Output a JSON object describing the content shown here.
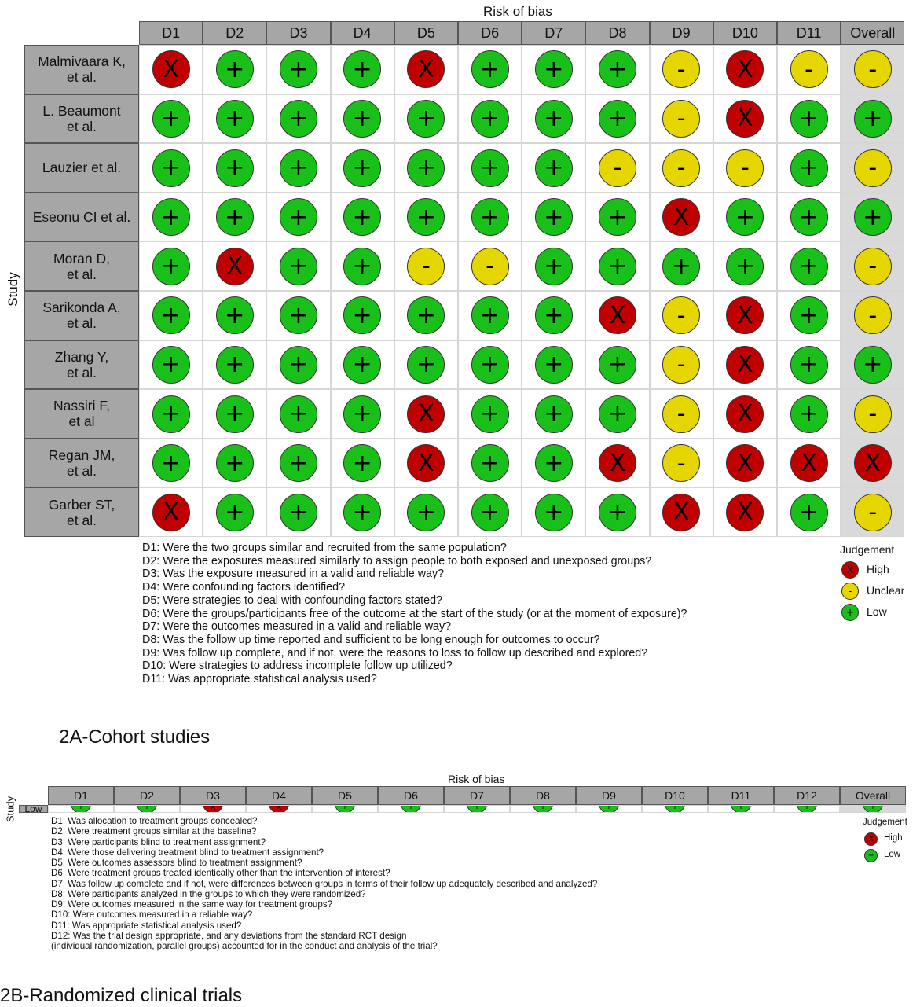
{
  "chart_data": [
    {
      "type": "table",
      "title": "Risk of bias",
      "ylabel": "Study",
      "columns": [
        "D1",
        "D2",
        "D3",
        "D4",
        "D5",
        "D6",
        "D7",
        "D8",
        "D9",
        "D10",
        "D11",
        "Overall"
      ],
      "rows": [
        {
          "study": "Malmivaara K,\net al.",
          "values": [
            "high",
            "low",
            "low",
            "low",
            "high",
            "low",
            "low",
            "low",
            "unclear",
            "high",
            "unclear",
            "unclear"
          ]
        },
        {
          "study": "L. Beaumont\net al.",
          "values": [
            "low",
            "low",
            "low",
            "low",
            "low",
            "low",
            "low",
            "low",
            "unclear",
            "high",
            "low",
            "low"
          ]
        },
        {
          "study": "Lauzier et al.",
          "values": [
            "low",
            "low",
            "low",
            "low",
            "low",
            "low",
            "low",
            "unclear",
            "unclear",
            "unclear",
            "low",
            "unclear"
          ]
        },
        {
          "study": "Eseonu CI et al.",
          "values": [
            "low",
            "low",
            "low",
            "low",
            "low",
            "low",
            "low",
            "low",
            "high",
            "low",
            "low",
            "low"
          ]
        },
        {
          "study": "Moran D,\net al.",
          "values": [
            "low",
            "high",
            "low",
            "low",
            "unclear",
            "unclear",
            "low",
            "low",
            "low",
            "low",
            "low",
            "unclear"
          ]
        },
        {
          "study": "Sarikonda A,\net al.",
          "values": [
            "low",
            "low",
            "low",
            "low",
            "low",
            "low",
            "low",
            "high",
            "unclear",
            "high",
            "low",
            "unclear"
          ]
        },
        {
          "study": "Zhang Y,\net al.",
          "values": [
            "low",
            "low",
            "low",
            "low",
            "low",
            "low",
            "low",
            "low",
            "unclear",
            "high",
            "low",
            "low"
          ]
        },
        {
          "study": "Nassiri F,\net al",
          "values": [
            "low",
            "low",
            "low",
            "low",
            "high",
            "low",
            "low",
            "low",
            "unclear",
            "high",
            "low",
            "unclear"
          ]
        },
        {
          "study": "Regan JM,\net al.",
          "values": [
            "low",
            "low",
            "low",
            "low",
            "high",
            "low",
            "low",
            "high",
            "unclear",
            "high",
            "high",
            "high"
          ]
        },
        {
          "study": "Garber ST,\net al.",
          "values": [
            "high",
            "low",
            "low",
            "low",
            "low",
            "low",
            "low",
            "low",
            "high",
            "high",
            "low",
            "unclear"
          ]
        }
      ],
      "domains": [
        "D1: Were the two groups similar and recruited from the same population?",
        "D2: Were the exposures measured similarly to assign people to both exposed and unexposed groups?",
        "D3: Was the exposure measured in a valid and reliable way?",
        "D4: Were confounding factors identified?",
        "D5: Were strategies to deal with confounding factors stated?",
        "D6: Were the groups/participants free of the outcome at the start of the study (or at the moment of exposure)?",
        "D7: Were the outcomes measured in a valid and reliable way?",
        "D8: Was the follow up time reported and sufficient to be long enough for outcomes to occur?",
        "D9: Was follow up complete, and if not, were the reasons to loss to follow up described and explored?",
        "D10: Were strategies to address incomplete follow up utilized?",
        "D11: Was appropriate statistical analysis used?"
      ],
      "legend": {
        "title": "Judgement",
        "items": [
          {
            "key": "high",
            "label": "High",
            "symbol": "X"
          },
          {
            "key": "unclear",
            "label": "Unclear",
            "symbol": "-"
          },
          {
            "key": "low",
            "label": "Low",
            "symbol": "+"
          }
        ]
      },
      "caption": "2A-Cohort studies"
    },
    {
      "type": "table",
      "title": "Risk of bias",
      "ylabel": "Study",
      "columns": [
        "D1",
        "D2",
        "D3",
        "D4",
        "D5",
        "D6",
        "D7",
        "D8",
        "D9",
        "D10",
        "D11",
        "D12",
        "Overall"
      ],
      "rows": [
        {
          "study": "Low",
          "values": [
            "low",
            "low",
            "high",
            "high",
            "low",
            "low",
            "low",
            "low",
            "low",
            "low",
            "low",
            "low",
            "low"
          ]
        }
      ],
      "domains": [
        "D1: Was allocation to treatment groups concealed?",
        "D2: Were treatment groups similar at the baseline?",
        "D3: Were participants blind to treatment assignment?",
        "D4: Were those delivering treatment blind to treatment assignment?",
        "D5: Were outcomes assessors blind to treatment assignment?",
        "D6: Were treatment groups treated identically other than the intervention of interest?",
        "D7: Was follow up complete and if not, were differences between groups in terms of their follow up adequately described and analyzed?",
        "D8: Were participants analyzed in the groups to which they were randomized?",
        "D9: Were outcomes measured in the same way for treatment groups?",
        "D10: Were outcomes measured in a reliable way?",
        "D11: Was appropriate statistical analysis used?",
        "D12: Was the trial design appropriate, and any deviations from the standard RCT design",
        "(individual randomization, parallel groups) accounted for in the conduct and analysis of the trial?"
      ],
      "legend": {
        "title": "Judgement",
        "items": [
          {
            "key": "high",
            "label": "High",
            "symbol": "X"
          },
          {
            "key": "low",
            "label": "Low",
            "symbol": "+"
          }
        ]
      },
      "caption": "2B-Randomized clinical trials"
    }
  ],
  "colors": {
    "high": "#c00000",
    "unclear": "#e6d600",
    "low": "#19c019",
    "header": "#a6a6a6",
    "overall_bg": "#d9d9d9"
  }
}
